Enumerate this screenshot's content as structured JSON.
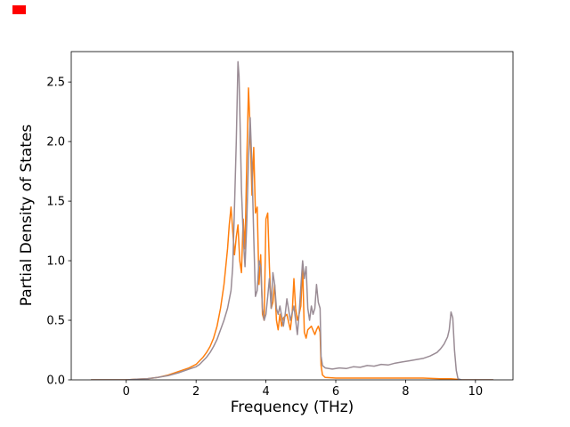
{
  "figure": {
    "xlabel": "Frequency (THz)",
    "ylabel": "Partial Density of States"
  },
  "marker": {
    "color": "#ff0000"
  },
  "chart_data": {
    "type": "line",
    "title": "",
    "xlabel": "Frequency (THz)",
    "ylabel": "Partial Density of States",
    "xlim": [
      -1.575,
      11.075
    ],
    "ylim": [
      0,
      2.755
    ],
    "grid": false,
    "legend": "none",
    "background": "#ffffff",
    "spine_color": "#000000",
    "xticks": {
      "values": [
        0,
        2,
        4,
        6,
        8,
        10
      ],
      "labels": [
        "0",
        "2",
        "4",
        "6",
        "8",
        "10"
      ]
    },
    "yticks": {
      "values": [
        0,
        0.5,
        1.0,
        1.5,
        2.0,
        2.5
      ],
      "labels": [
        "0.0",
        "0.5",
        "1.0",
        "1.5",
        "2.0",
        "2.5"
      ]
    },
    "series": [
      {
        "name": "orange",
        "color": "#ff7f0e",
        "linewidth": 1.5,
        "points": [
          [
            -1,
            0
          ],
          [
            0,
            0
          ],
          [
            0.3,
            0.005
          ],
          [
            0.6,
            0.01
          ],
          [
            0.9,
            0.02
          ],
          [
            1.2,
            0.04
          ],
          [
            1.5,
            0.07
          ],
          [
            1.8,
            0.1
          ],
          [
            2.0,
            0.13
          ],
          [
            2.1,
            0.16
          ],
          [
            2.2,
            0.19
          ],
          [
            2.3,
            0.23
          ],
          [
            2.4,
            0.28
          ],
          [
            2.5,
            0.35
          ],
          [
            2.6,
            0.45
          ],
          [
            2.7,
            0.6
          ],
          [
            2.8,
            0.8
          ],
          [
            2.85,
            0.95
          ],
          [
            2.9,
            1.1
          ],
          [
            2.95,
            1.3
          ],
          [
            3.0,
            1.45
          ],
          [
            3.05,
            1.25
          ],
          [
            3.1,
            1.05
          ],
          [
            3.15,
            1.2
          ],
          [
            3.2,
            1.3
          ],
          [
            3.25,
            1.0
          ],
          [
            3.3,
            0.9
          ],
          [
            3.35,
            1.35
          ],
          [
            3.4,
            1.1
          ],
          [
            3.45,
            1.8
          ],
          [
            3.5,
            2.45
          ],
          [
            3.55,
            2.1
          ],
          [
            3.6,
            1.55
          ],
          [
            3.65,
            1.95
          ],
          [
            3.7,
            1.4
          ],
          [
            3.75,
            1.45
          ],
          [
            3.8,
            0.8
          ],
          [
            3.85,
            1.05
          ],
          [
            3.9,
            0.55
          ],
          [
            3.95,
            0.5
          ],
          [
            4.0,
            1.35
          ],
          [
            4.05,
            1.4
          ],
          [
            4.1,
            0.95
          ],
          [
            4.15,
            0.6
          ],
          [
            4.2,
            0.65
          ],
          [
            4.25,
            0.8
          ],
          [
            4.3,
            0.5
          ],
          [
            4.35,
            0.42
          ],
          [
            4.4,
            0.55
          ],
          [
            4.45,
            0.45
          ],
          [
            4.5,
            0.52
          ],
          [
            4.6,
            0.55
          ],
          [
            4.7,
            0.42
          ],
          [
            4.75,
            0.55
          ],
          [
            4.8,
            0.85
          ],
          [
            4.85,
            0.6
          ],
          [
            4.9,
            0.5
          ],
          [
            4.95,
            0.55
          ],
          [
            5.0,
            0.62
          ],
          [
            5.05,
            0.95
          ],
          [
            5.1,
            0.4
          ],
          [
            5.15,
            0.35
          ],
          [
            5.2,
            0.42
          ],
          [
            5.3,
            0.45
          ],
          [
            5.4,
            0.38
          ],
          [
            5.45,
            0.42
          ],
          [
            5.5,
            0.45
          ],
          [
            5.55,
            0.4
          ],
          [
            5.58,
            0.12
          ],
          [
            5.62,
            0.04
          ],
          [
            5.7,
            0.02
          ],
          [
            6.0,
            0.015
          ],
          [
            6.5,
            0.015
          ],
          [
            7.0,
            0.015
          ],
          [
            7.5,
            0.015
          ],
          [
            8.0,
            0.015
          ],
          [
            8.5,
            0.015
          ],
          [
            9.0,
            0.01
          ],
          [
            9.3,
            0.01
          ],
          [
            9.45,
            0.005
          ],
          [
            9.6,
            0
          ],
          [
            10.5,
            0
          ]
        ]
      },
      {
        "name": "gray",
        "color": "#9a8c95",
        "linewidth": 1.5,
        "points": [
          [
            -1,
            0
          ],
          [
            0,
            0
          ],
          [
            0.3,
            0.005
          ],
          [
            0.6,
            0.01
          ],
          [
            0.9,
            0.02
          ],
          [
            1.2,
            0.035
          ],
          [
            1.5,
            0.06
          ],
          [
            1.8,
            0.09
          ],
          [
            2.0,
            0.11
          ],
          [
            2.1,
            0.13
          ],
          [
            2.2,
            0.16
          ],
          [
            2.3,
            0.19
          ],
          [
            2.4,
            0.23
          ],
          [
            2.5,
            0.28
          ],
          [
            2.6,
            0.34
          ],
          [
            2.7,
            0.42
          ],
          [
            2.8,
            0.5
          ],
          [
            2.9,
            0.6
          ],
          [
            3.0,
            0.75
          ],
          [
            3.05,
            0.95
          ],
          [
            3.1,
            1.45
          ],
          [
            3.15,
            2.0
          ],
          [
            3.2,
            2.67
          ],
          [
            3.23,
            2.55
          ],
          [
            3.27,
            2.0
          ],
          [
            3.3,
            1.6
          ],
          [
            3.35,
            1.2
          ],
          [
            3.4,
            0.95
          ],
          [
            3.45,
            1.3
          ],
          [
            3.5,
            1.85
          ],
          [
            3.55,
            2.2
          ],
          [
            3.6,
            1.8
          ],
          [
            3.65,
            1.2
          ],
          [
            3.7,
            0.7
          ],
          [
            3.75,
            0.75
          ],
          [
            3.8,
            1.0
          ],
          [
            3.85,
            0.95
          ],
          [
            3.9,
            0.6
          ],
          [
            3.95,
            0.5
          ],
          [
            4.0,
            0.55
          ],
          [
            4.05,
            0.7
          ],
          [
            4.1,
            0.85
          ],
          [
            4.15,
            0.6
          ],
          [
            4.2,
            0.9
          ],
          [
            4.25,
            0.8
          ],
          [
            4.3,
            0.6
          ],
          [
            4.35,
            0.55
          ],
          [
            4.4,
            0.62
          ],
          [
            4.5,
            0.45
          ],
          [
            4.55,
            0.55
          ],
          [
            4.6,
            0.68
          ],
          [
            4.7,
            0.5
          ],
          [
            4.8,
            0.62
          ],
          [
            4.9,
            0.38
          ],
          [
            4.95,
            0.55
          ],
          [
            5.0,
            0.78
          ],
          [
            5.05,
            1.0
          ],
          [
            5.1,
            0.85
          ],
          [
            5.15,
            0.95
          ],
          [
            5.2,
            0.6
          ],
          [
            5.25,
            0.5
          ],
          [
            5.3,
            0.62
          ],
          [
            5.35,
            0.55
          ],
          [
            5.4,
            0.6
          ],
          [
            5.45,
            0.8
          ],
          [
            5.5,
            0.65
          ],
          [
            5.55,
            0.6
          ],
          [
            5.58,
            0.2
          ],
          [
            5.62,
            0.12
          ],
          [
            5.7,
            0.1
          ],
          [
            5.9,
            0.09
          ],
          [
            6.1,
            0.1
          ],
          [
            6.3,
            0.095
          ],
          [
            6.5,
            0.11
          ],
          [
            6.7,
            0.105
          ],
          [
            6.9,
            0.12
          ],
          [
            7.1,
            0.115
          ],
          [
            7.3,
            0.13
          ],
          [
            7.5,
            0.125
          ],
          [
            7.7,
            0.14
          ],
          [
            7.9,
            0.15
          ],
          [
            8.1,
            0.16
          ],
          [
            8.3,
            0.17
          ],
          [
            8.5,
            0.18
          ],
          [
            8.7,
            0.2
          ],
          [
            8.9,
            0.23
          ],
          [
            9.0,
            0.26
          ],
          [
            9.1,
            0.3
          ],
          [
            9.2,
            0.36
          ],
          [
            9.25,
            0.42
          ],
          [
            9.3,
            0.57
          ],
          [
            9.35,
            0.52
          ],
          [
            9.4,
            0.25
          ],
          [
            9.45,
            0.08
          ],
          [
            9.5,
            0.01
          ],
          [
            9.6,
            0
          ],
          [
            10.5,
            0
          ]
        ]
      }
    ]
  }
}
